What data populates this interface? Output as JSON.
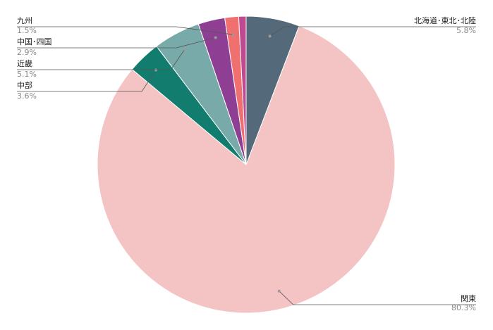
{
  "chart_data": {
    "type": "pie",
    "title": "",
    "slices": [
      {
        "label": "北海道･東北･北陸",
        "value": 5.8,
        "display": "5.8%",
        "color": "#546a7b"
      },
      {
        "label": "関東",
        "value": 80.3,
        "display": "80.3%",
        "color": "#f4c3c4"
      },
      {
        "label": "中部",
        "value": 3.6,
        "display": "3.6%",
        "color": "#127c6e"
      },
      {
        "label": "近畿",
        "value": 5.1,
        "display": "5.1%",
        "color": "#79aaaa"
      },
      {
        "label": "中国･四国",
        "value": 2.9,
        "display": "2.9%",
        "color": "#8f3f93"
      },
      {
        "label": "九州",
        "value": 1.5,
        "display": "1.5%",
        "color": "#f07070"
      },
      {
        "label": "",
        "value": 0.8,
        "display": "",
        "color": "#c04a91"
      }
    ],
    "legend": "none"
  }
}
